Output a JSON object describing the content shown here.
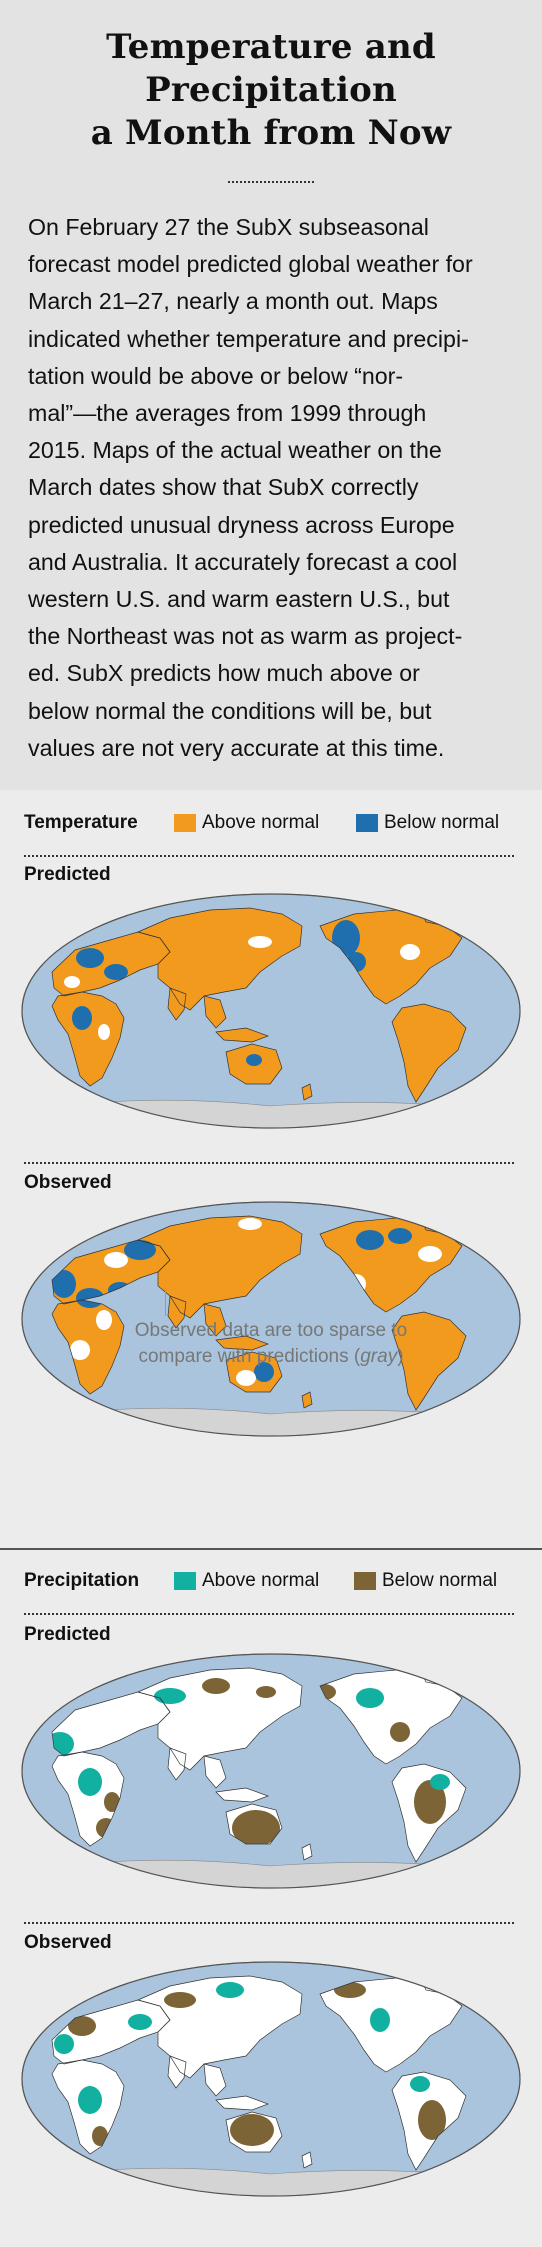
{
  "title_lines": [
    "Temperature and",
    "Precipitation",
    "a Month from Now"
  ],
  "intro_lines": [
    "On February 27 the SubX subseasonal",
    "forecast model predicted global weather for",
    "March 21–27, nearly a month out. Maps",
    "indicated whether temperature and precipi-",
    "tation would be above or below “nor-",
    "mal”—the averages from 1999 through",
    "2015. Maps of the actual weather on the",
    "March dates show that SubX correctly",
    "predicted unusual dryness across Europe",
    "and Australia. It accurately forecast a cool",
    "western U.S. and warm eastern U.S., but",
    "the Northeast was not as warm as project-",
    "ed. SubX predicts how much above or",
    "below normal the conditions will be, but",
    "values are not very accurate at this time."
  ],
  "temperature": {
    "title": "Temperature",
    "legend_above": "Above normal",
    "legend_below": "Below normal",
    "color_above": "#f29a1d",
    "color_below": "#1f6fae",
    "predicted_label": "Predicted",
    "observed_label": "Observed",
    "note_line1": "Observed data are too sparse to",
    "note_line2_prefix": "compare with predictions (",
    "note_line2_em": "gray",
    "note_line2_suffix": ")"
  },
  "precipitation": {
    "title": "Precipitation",
    "legend_above": "Above normal",
    "legend_below": "Below normal",
    "color_above": "#12b0a0",
    "color_below": "#7c6436",
    "predicted_label": "Predicted",
    "observed_label": "Observed"
  },
  "ocean_color": "#a9c4dc",
  "no_data_color": "#d4d4d4"
}
